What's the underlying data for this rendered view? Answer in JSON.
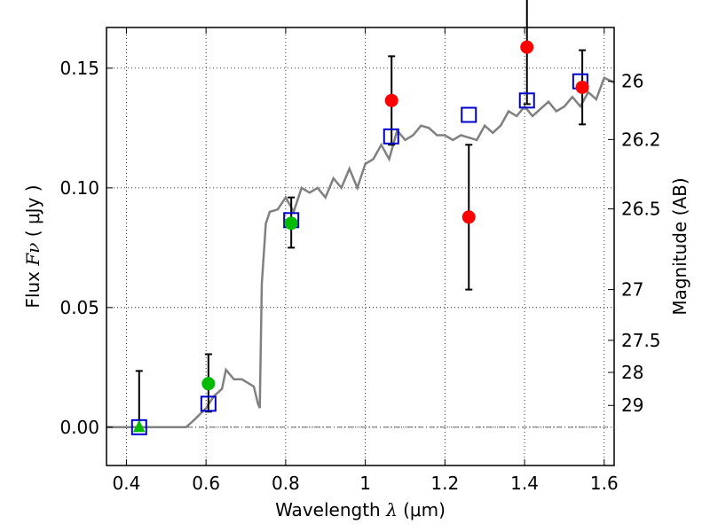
{
  "chart_data": {
    "type": "scatter",
    "xlabel": {
      "prefix": "Wavelength  ",
      "symbol": "λ",
      "suffix": " (μm)"
    },
    "ylabel": {
      "prefix": "Flux  ",
      "symbol": "Fν",
      "suffix": "  ( μJy )"
    },
    "y2label": "Magnitude (AB)",
    "xlim": [
      0.35,
      1.625
    ],
    "ylim": [
      -0.016,
      0.167
    ],
    "x_ticks": [
      0.4,
      0.6,
      0.8,
      1.0,
      1.2,
      1.4,
      1.6
    ],
    "x_tick_labels": [
      "0.4",
      "0.6",
      "0.8",
      "1",
      "1.2",
      "1.4",
      "1.6"
    ],
    "y_ticks": [
      0.0,
      0.05,
      0.1,
      0.15
    ],
    "y_tick_labels": [
      "0.00",
      "0.05",
      "0.10",
      "0.15"
    ],
    "y2_ticks": [
      {
        "label": "26",
        "flux": 0.1445
      },
      {
        "label": "26.2",
        "flux": 0.1202
      },
      {
        "label": "26.5",
        "flux": 0.0912
      },
      {
        "label": "27",
        "flux": 0.0575
      },
      {
        "label": "27.5",
        "flux": 0.0363
      },
      {
        "label": "28",
        "flux": 0.0229
      },
      {
        "label": "29",
        "flux": 0.0091
      }
    ],
    "grid": true,
    "zero_line": true,
    "colors": {
      "model": "#808080",
      "detected": "#ff0000",
      "optical": "#00bb00",
      "model_band": "#0000cc",
      "error": "#000000"
    },
    "model_spectrum": {
      "x": [
        0.35,
        0.55,
        0.57,
        0.6,
        0.62,
        0.64,
        0.65,
        0.66,
        0.67,
        0.69,
        0.71,
        0.72,
        0.73,
        0.735,
        0.74,
        0.75,
        0.76,
        0.78,
        0.8,
        0.82,
        0.84,
        0.86,
        0.88,
        0.9,
        0.92,
        0.94,
        0.96,
        0.98,
        1.0,
        1.02,
        1.04,
        1.06,
        1.08,
        1.1,
        1.12,
        1.14,
        1.16,
        1.18,
        1.2,
        1.22,
        1.24,
        1.26,
        1.28,
        1.3,
        1.32,
        1.34,
        1.36,
        1.38,
        1.4,
        1.42,
        1.44,
        1.46,
        1.48,
        1.5,
        1.52,
        1.54,
        1.56,
        1.58,
        1.6,
        1.625
      ],
      "y": [
        0.0,
        0.0,
        0.003,
        0.008,
        0.013,
        0.016,
        0.024,
        0.022,
        0.02,
        0.02,
        0.018,
        0.017,
        0.01,
        0.008,
        0.06,
        0.085,
        0.09,
        0.091,
        0.096,
        0.09,
        0.1,
        0.098,
        0.1,
        0.096,
        0.104,
        0.1,
        0.108,
        0.1,
        0.11,
        0.112,
        0.118,
        0.112,
        0.124,
        0.12,
        0.122,
        0.126,
        0.125,
        0.122,
        0.122,
        0.12,
        0.122,
        0.121,
        0.12,
        0.126,
        0.123,
        0.126,
        0.132,
        0.13,
        0.134,
        0.13,
        0.133,
        0.136,
        0.132,
        0.134,
        0.138,
        0.134,
        0.14,
        0.137,
        0.146,
        0.144
      ]
    },
    "model_band_fluxes": [
      {
        "x": 0.432,
        "y": 0.0
      },
      {
        "x": 0.606,
        "y": 0.0098
      },
      {
        "x": 0.814,
        "y": 0.0865
      },
      {
        "x": 1.065,
        "y": 0.1215
      },
      {
        "x": 1.26,
        "y": 0.1305
      },
      {
        "x": 1.406,
        "y": 0.1365
      },
      {
        "x": 1.54,
        "y": 0.1445
      }
    ],
    "observed": [
      {
        "x": 0.432,
        "y": 0.0,
        "yerr_low": 0.0,
        "yerr_high": 0.0235,
        "marker": "triangle",
        "kind": "optical"
      },
      {
        "x": 0.606,
        "y": 0.0182,
        "yerr_low": 0.0117,
        "yerr_high": 0.0123,
        "marker": "circle",
        "kind": "optical"
      },
      {
        "x": 0.814,
        "y": 0.0852,
        "yerr_low": 0.0102,
        "yerr_high": 0.0108,
        "marker": "circle",
        "kind": "optical"
      },
      {
        "x": 1.066,
        "y": 0.1365,
        "yerr_low": 0.0185,
        "yerr_high": 0.0185,
        "marker": "circle",
        "kind": "detected"
      },
      {
        "x": 1.26,
        "y": 0.0878,
        "yerr_low": 0.0303,
        "yerr_high": 0.0302,
        "marker": "circle",
        "kind": "detected"
      },
      {
        "x": 1.406,
        "y": 0.1588,
        "yerr_low": 0.0238,
        "yerr_high": 0.0232,
        "marker": "circle",
        "kind": "detected"
      },
      {
        "x": 1.545,
        "y": 0.142,
        "yerr_low": 0.0155,
        "yerr_high": 0.0155,
        "marker": "circle",
        "kind": "detected"
      }
    ]
  }
}
